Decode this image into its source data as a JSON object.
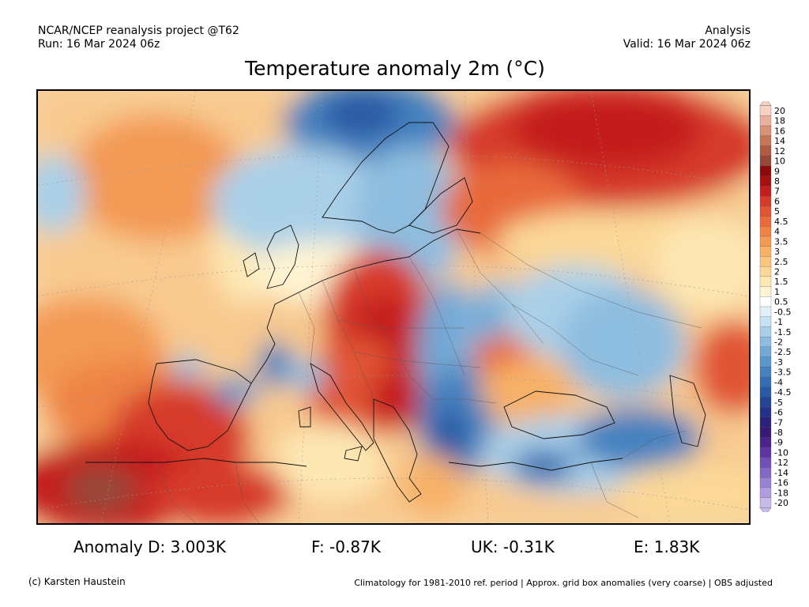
{
  "header": {
    "left_line1": "NCAR/NCEP reanalysis project @T62",
    "left_line2": "Run: 16 Mar 2024 06z",
    "right_line1": "Analysis",
    "right_line2": "Valid: 16 Mar 2024 06z"
  },
  "title": "Temperature anomaly 2m (°C)",
  "legend": {
    "labels": [
      "20",
      "18",
      "16",
      "14",
      "12",
      "10",
      "9",
      "8",
      "7",
      "6",
      "5",
      "4.5",
      "4",
      "3.5",
      "3",
      "2.5",
      "2",
      "1.5",
      "1",
      "0.5",
      "-0.5",
      "-1",
      "-1.5",
      "-2",
      "-2.5",
      "-3",
      "-3.5",
      "-4",
      "-4.5",
      "-5",
      "-6",
      "-7",
      "-8",
      "-9",
      "-10",
      "-12",
      "-14",
      "-16",
      "-18",
      "-20"
    ],
    "colors": [
      "#f6d1c2",
      "#e9b19c",
      "#d89277",
      "#c67658",
      "#b05c42",
      "#96483a",
      "#8c0a0a",
      "#a51010",
      "#c41e1e",
      "#d63a2a",
      "#e05534",
      "#e86b3a",
      "#ee8345",
      "#f39a55",
      "#f7b168",
      "#f9c57f",
      "#fbd898",
      "#fde7b2",
      "#fff4d2",
      "#ffffff",
      "#e2f0f8",
      "#c7e1f1",
      "#aad0e8",
      "#8dbddf",
      "#72a9d5",
      "#5996ca",
      "#4582bf",
      "#356eb3",
      "#2a5aa5",
      "#244594",
      "#253289",
      "#2b227c",
      "#371a73",
      "#4a238b",
      "#5d36a1",
      "#7050b6",
      "#8569c6",
      "#9a82d3",
      "#b09ddf",
      "#c8bbea"
    ]
  },
  "stats": {
    "D": "Anomaly D: 3.003K",
    "F": "F: -0.87K",
    "UK": "UK: -0.31K",
    "E": "E: 1.83K"
  },
  "footer": {
    "left": "(c) Karsten Haustein",
    "right": "Climatology for 1981-2010 ref. period | Approx. grid box anomalies (very coarse) | OBS adjusted"
  }
}
